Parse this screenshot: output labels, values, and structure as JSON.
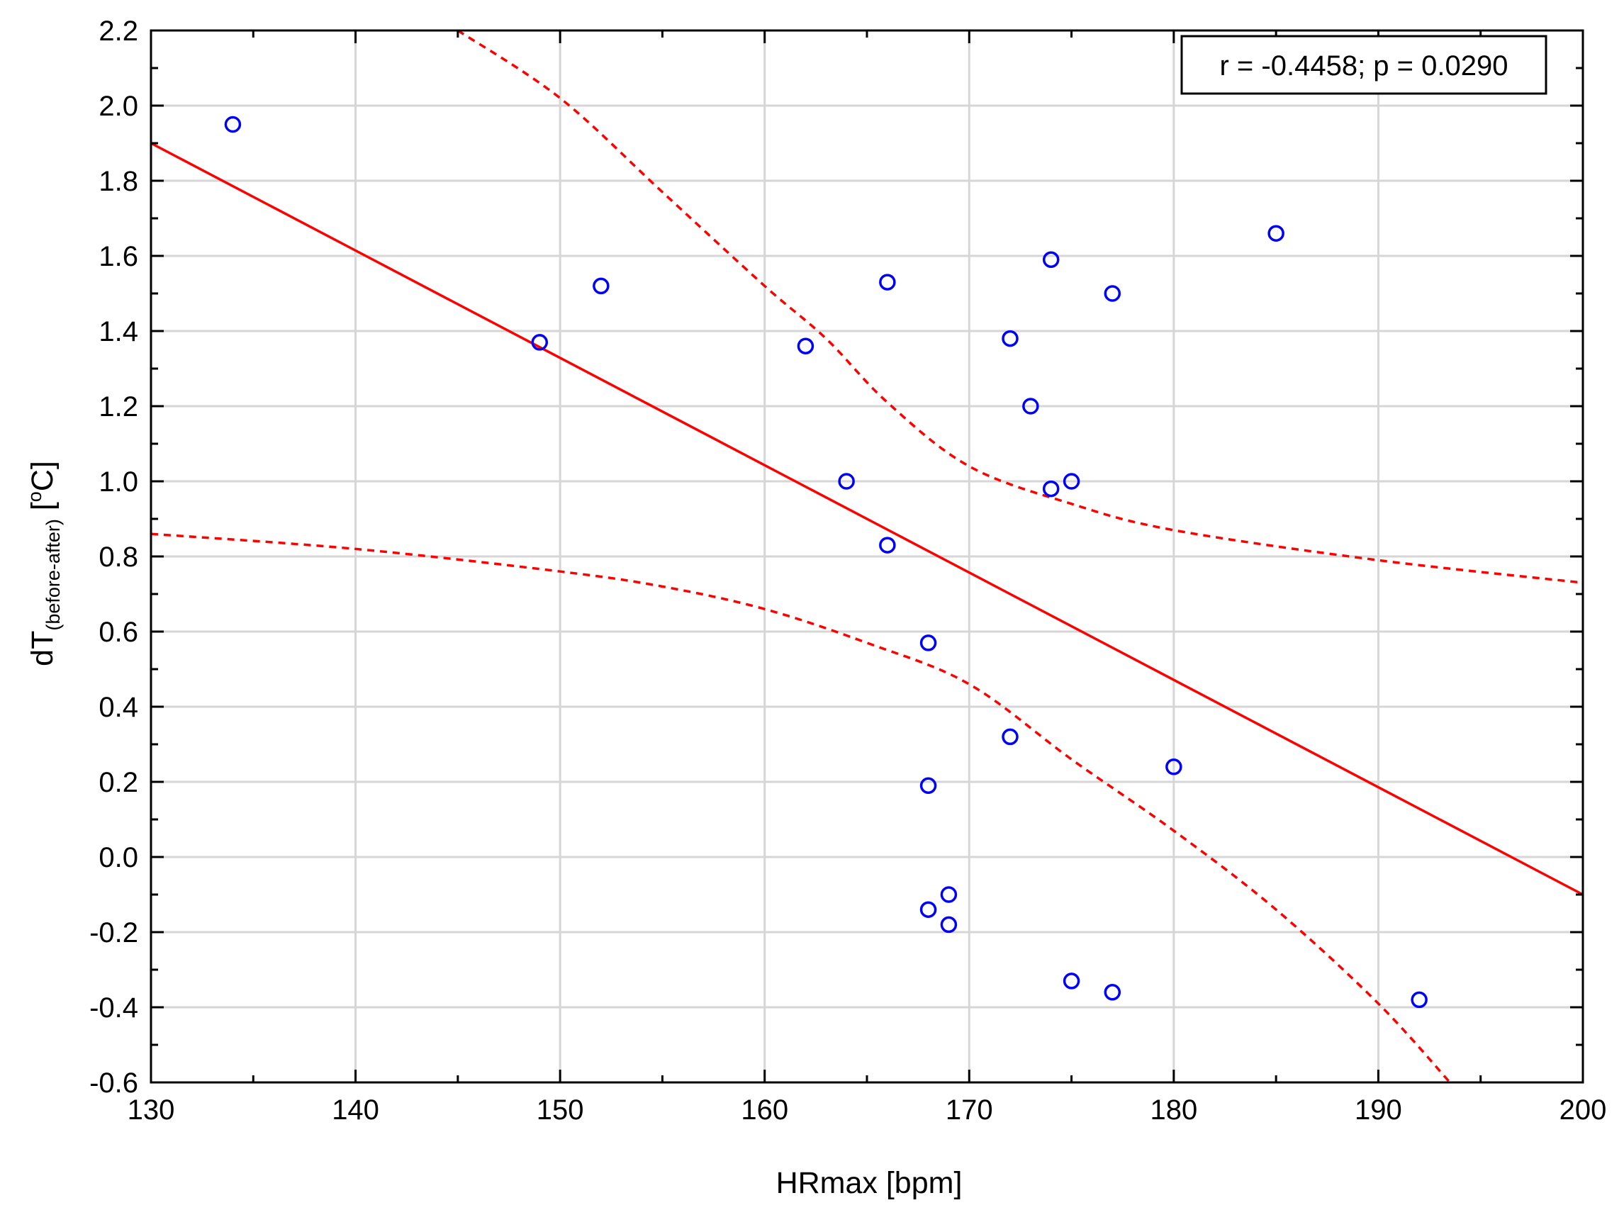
{
  "chart_data": {
    "type": "scatter",
    "xlabel": "HRmax [bpm]",
    "ylabel": {
      "main": "dT",
      "subscript": "(before-after)",
      "unit": " [",
      "unit_sup": "o",
      "unit_end": "C]"
    },
    "xlim": [
      130,
      200
    ],
    "ylim": [
      -0.6,
      2.2
    ],
    "x_ticks": [
      130,
      140,
      150,
      160,
      170,
      180,
      190,
      200
    ],
    "x_tick_labels": [
      "130",
      "140",
      "150",
      "160",
      "170",
      "180",
      "190",
      "200"
    ],
    "y_ticks": [
      -0.6,
      -0.4,
      -0.2,
      0.0,
      0.2,
      0.4,
      0.6,
      0.8,
      1.0,
      1.2,
      1.4,
      1.6,
      1.8,
      2.0,
      2.2
    ],
    "y_tick_labels": [
      "-0.6",
      "-0.4",
      "-0.2",
      "0.0",
      "0.2",
      "0.4",
      "0.6",
      "0.8",
      "1.0",
      "1.2",
      "1.4",
      "1.6",
      "1.8",
      "2.0",
      "2.2"
    ],
    "grid": true,
    "annotation": "r = -0.4458; p = 0.0290",
    "annotation_position": "top-right",
    "points": [
      {
        "x": 134,
        "y": 1.95
      },
      {
        "x": 149,
        "y": 1.37
      },
      {
        "x": 152,
        "y": 1.52
      },
      {
        "x": 162,
        "y": 1.36
      },
      {
        "x": 164,
        "y": 1.0
      },
      {
        "x": 166,
        "y": 1.53
      },
      {
        "x": 166,
        "y": 0.83
      },
      {
        "x": 168,
        "y": 0.57
      },
      {
        "x": 168,
        "y": 0.19
      },
      {
        "x": 168,
        "y": -0.14
      },
      {
        "x": 169,
        "y": -0.1
      },
      {
        "x": 169,
        "y": -0.18
      },
      {
        "x": 172,
        "y": 1.38
      },
      {
        "x": 172,
        "y": 0.32
      },
      {
        "x": 173,
        "y": 1.2
      },
      {
        "x": 174,
        "y": 1.59
      },
      {
        "x": 174,
        "y": 0.98
      },
      {
        "x": 175,
        "y": 1.0
      },
      {
        "x": 175,
        "y": -0.33
      },
      {
        "x": 177,
        "y": 1.5
      },
      {
        "x": 177,
        "y": -0.36
      },
      {
        "x": 180,
        "y": 0.24
      },
      {
        "x": 185,
        "y": 1.66
      },
      {
        "x": 192,
        "y": -0.38
      }
    ],
    "regression_line": [
      [
        130,
        1.9
      ],
      [
        200,
        -0.1
      ]
    ],
    "ci_upper": [
      [
        145,
        2.2
      ],
      [
        150,
        2.02
      ],
      [
        155,
        1.77
      ],
      [
        160,
        1.52
      ],
      [
        163,
        1.38
      ],
      [
        166,
        1.21
      ],
      [
        170,
        1.04
      ],
      [
        175,
        0.94
      ],
      [
        180,
        0.87
      ],
      [
        190,
        0.79
      ],
      [
        200,
        0.73
      ]
    ],
    "ci_lower": [
      [
        130,
        0.86
      ],
      [
        140,
        0.82
      ],
      [
        150,
        0.76
      ],
      [
        155,
        0.72
      ],
      [
        160,
        0.66
      ],
      [
        165,
        0.57
      ],
      [
        170,
        0.46
      ],
      [
        175,
        0.26
      ],
      [
        180,
        0.07
      ],
      [
        185,
        -0.14
      ],
      [
        190,
        -0.39
      ],
      [
        193.5,
        -0.6
      ]
    ],
    "colors": {
      "points": "#0000ff",
      "fit": "#ff0000",
      "grid": "#d6d6d6"
    }
  }
}
